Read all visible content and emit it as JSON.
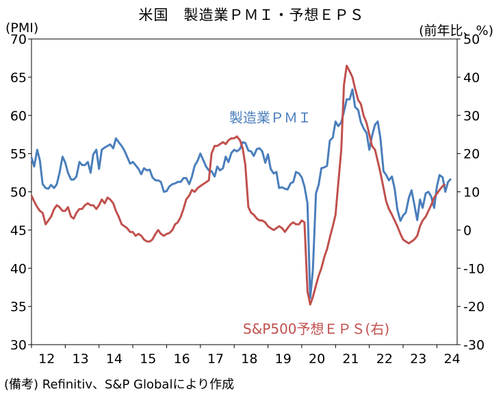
{
  "title": "米国　製造業ＰＭＩ・予想ＥＰＳ",
  "left_unit": "(PMI)",
  "right_unit": "(前年比、%)",
  "note": "(備考) Refinitiv、S&P Globalにより作成",
  "colors": {
    "pmi": "#4a7ebb",
    "eps": "#c0504d"
  },
  "chart_data": {
    "type": "line",
    "title": "米国　製造業ＰＭＩ・予想ＥＰＳ",
    "x_labels": [
      "12",
      "13",
      "14",
      "15",
      "16",
      "17",
      "18",
      "19",
      "20",
      "21",
      "22",
      "23",
      "24"
    ],
    "x_range": [
      2012.0,
      2024.6
    ],
    "y_left": {
      "label": "(PMI)",
      "lim": [
        30,
        70
      ],
      "ticks": [
        30,
        35,
        40,
        45,
        50,
        55,
        60,
        65,
        70
      ]
    },
    "y_right": {
      "label": "(前年比、%)",
      "lim": [
        -30,
        50
      ],
      "ticks": [
        -30,
        -20,
        -10,
        0,
        10,
        20,
        30,
        40,
        50
      ]
    },
    "grid": false,
    "series": [
      {
        "name": "製造業ＰＭＩ",
        "axis": "left",
        "color": "#4a7ebb",
        "label_text": "製造業ＰＭＩ",
        "points": [
          [
            2012.0,
            54.5
          ],
          [
            2012.08,
            53.3
          ],
          [
            2012.17,
            55.5
          ],
          [
            2012.25,
            54.1
          ],
          [
            2012.33,
            51.0
          ],
          [
            2012.42,
            50.5
          ],
          [
            2012.5,
            50.4
          ],
          [
            2012.58,
            50.9
          ],
          [
            2012.67,
            50.5
          ],
          [
            2012.75,
            51.0
          ],
          [
            2012.83,
            52.5
          ],
          [
            2012.92,
            54.6
          ],
          [
            2013.0,
            53.8
          ],
          [
            2013.08,
            52.5
          ],
          [
            2013.17,
            51.6
          ],
          [
            2013.25,
            51.6
          ],
          [
            2013.33,
            52.0
          ],
          [
            2013.42,
            53.9
          ],
          [
            2013.5,
            53.5
          ],
          [
            2013.58,
            53.5
          ],
          [
            2013.67,
            53.9
          ],
          [
            2013.75,
            52.5
          ],
          [
            2013.83,
            54.9
          ],
          [
            2013.92,
            55.5
          ],
          [
            2014.0,
            53.0
          ],
          [
            2014.08,
            55.5
          ],
          [
            2014.17,
            55.8
          ],
          [
            2014.25,
            56.0
          ],
          [
            2014.33,
            56.2
          ],
          [
            2014.42,
            55.7
          ],
          [
            2014.5,
            57.0
          ],
          [
            2014.58,
            56.5
          ],
          [
            2014.67,
            56.0
          ],
          [
            2014.75,
            55.4
          ],
          [
            2014.83,
            54.6
          ],
          [
            2014.92,
            53.7
          ],
          [
            2015.0,
            53.9
          ],
          [
            2015.08,
            53.5
          ],
          [
            2015.17,
            53.0
          ],
          [
            2015.25,
            52.3
          ],
          [
            2015.33,
            53.1
          ],
          [
            2015.42,
            52.8
          ],
          [
            2015.5,
            52.9
          ],
          [
            2015.58,
            51.9
          ],
          [
            2015.67,
            51.5
          ],
          [
            2015.75,
            51.5
          ],
          [
            2015.83,
            51.3
          ],
          [
            2015.92,
            50.0
          ],
          [
            2016.0,
            50.1
          ],
          [
            2016.08,
            50.7
          ],
          [
            2016.17,
            51.0
          ],
          [
            2016.25,
            51.1
          ],
          [
            2016.33,
            51.3
          ],
          [
            2016.42,
            51.3
          ],
          [
            2016.5,
            51.8
          ],
          [
            2016.58,
            51.8
          ],
          [
            2016.67,
            51.0
          ],
          [
            2016.75,
            52.0
          ],
          [
            2016.83,
            53.4
          ],
          [
            2016.92,
            54.1
          ],
          [
            2017.0,
            55.0
          ],
          [
            2017.08,
            54.2
          ],
          [
            2017.17,
            53.3
          ],
          [
            2017.25,
            52.8
          ],
          [
            2017.33,
            52.7
          ],
          [
            2017.42,
            52.0
          ],
          [
            2017.5,
            53.3
          ],
          [
            2017.58,
            52.8
          ],
          [
            2017.67,
            53.1
          ],
          [
            2017.75,
            54.6
          ],
          [
            2017.83,
            53.9
          ],
          [
            2017.92,
            55.1
          ],
          [
            2018.0,
            55.5
          ],
          [
            2018.08,
            55.3
          ],
          [
            2018.17,
            55.6
          ],
          [
            2018.25,
            56.5
          ],
          [
            2018.33,
            56.4
          ],
          [
            2018.42,
            55.4
          ],
          [
            2018.5,
            55.3
          ],
          [
            2018.58,
            54.7
          ],
          [
            2018.67,
            55.6
          ],
          [
            2018.75,
            55.7
          ],
          [
            2018.83,
            55.3
          ],
          [
            2018.92,
            53.8
          ],
          [
            2019.0,
            54.9
          ],
          [
            2019.08,
            53.0
          ],
          [
            2019.17,
            52.4
          ],
          [
            2019.25,
            52.6
          ],
          [
            2019.33,
            50.5
          ],
          [
            2019.42,
            50.6
          ],
          [
            2019.5,
            50.4
          ],
          [
            2019.58,
            50.3
          ],
          [
            2019.67,
            51.1
          ],
          [
            2019.75,
            51.3
          ],
          [
            2019.83,
            52.6
          ],
          [
            2019.92,
            52.4
          ],
          [
            2020.0,
            51.9
          ],
          [
            2020.08,
            50.7
          ],
          [
            2020.17,
            48.5
          ],
          [
            2020.25,
            36.1
          ],
          [
            2020.33,
            39.8
          ],
          [
            2020.42,
            49.8
          ],
          [
            2020.5,
            50.9
          ],
          [
            2020.58,
            53.1
          ],
          [
            2020.67,
            53.2
          ],
          [
            2020.75,
            53.4
          ],
          [
            2020.83,
            56.7
          ],
          [
            2020.92,
            57.1
          ],
          [
            2021.0,
            59.2
          ],
          [
            2021.08,
            58.6
          ],
          [
            2021.17,
            59.1
          ],
          [
            2021.25,
            60.5
          ],
          [
            2021.33,
            62.1
          ],
          [
            2021.42,
            62.1
          ],
          [
            2021.5,
            63.4
          ],
          [
            2021.58,
            61.1
          ],
          [
            2021.67,
            60.7
          ],
          [
            2021.75,
            59.1
          ],
          [
            2021.83,
            58.3
          ],
          [
            2021.92,
            57.7
          ],
          [
            2022.0,
            55.5
          ],
          [
            2022.08,
            57.3
          ],
          [
            2022.17,
            58.8
          ],
          [
            2022.25,
            59.2
          ],
          [
            2022.33,
            57.0
          ],
          [
            2022.42,
            52.7
          ],
          [
            2022.5,
            52.2
          ],
          [
            2022.58,
            51.5
          ],
          [
            2022.67,
            52.0
          ],
          [
            2022.75,
            50.4
          ],
          [
            2022.83,
            47.7
          ],
          [
            2022.92,
            46.2
          ],
          [
            2023.0,
            46.9
          ],
          [
            2023.08,
            47.3
          ],
          [
            2023.17,
            49.2
          ],
          [
            2023.25,
            50.2
          ],
          [
            2023.33,
            48.4
          ],
          [
            2023.42,
            46.3
          ],
          [
            2023.5,
            49.0
          ],
          [
            2023.58,
            47.9
          ],
          [
            2023.67,
            49.8
          ],
          [
            2023.75,
            50.0
          ],
          [
            2023.83,
            49.4
          ],
          [
            2023.92,
            47.9
          ],
          [
            2024.0,
            50.7
          ],
          [
            2024.08,
            52.2
          ],
          [
            2024.17,
            51.9
          ],
          [
            2024.25,
            50.0
          ],
          [
            2024.33,
            51.3
          ],
          [
            2024.42,
            51.7
          ]
        ]
      },
      {
        "name": "S&P500予想ＥＰＳ(右)",
        "axis": "right",
        "color": "#c0504d",
        "label_text": "S&P500予想ＥＰＳ(右)",
        "points": [
          [
            2012.0,
            9
          ],
          [
            2012.08,
            7.5
          ],
          [
            2012.17,
            6
          ],
          [
            2012.25,
            5
          ],
          [
            2012.33,
            4.5
          ],
          [
            2012.42,
            1.5
          ],
          [
            2012.5,
            2.5
          ],
          [
            2012.58,
            3.5
          ],
          [
            2012.67,
            5.5
          ],
          [
            2012.75,
            6.5
          ],
          [
            2012.83,
            6
          ],
          [
            2012.92,
            5
          ],
          [
            2013.0,
            5
          ],
          [
            2013.08,
            6
          ],
          [
            2013.17,
            3.5
          ],
          [
            2013.25,
            3.0
          ],
          [
            2013.33,
            4.5
          ],
          [
            2013.42,
            5.5
          ],
          [
            2013.5,
            5.5
          ],
          [
            2013.58,
            6.5
          ],
          [
            2013.67,
            7.0
          ],
          [
            2013.75,
            6.5
          ],
          [
            2013.83,
            6.5
          ],
          [
            2013.92,
            5.5
          ],
          [
            2014.0,
            6.5
          ],
          [
            2014.08,
            8.0
          ],
          [
            2014.17,
            7.0
          ],
          [
            2014.25,
            8.5
          ],
          [
            2014.33,
            8.0
          ],
          [
            2014.42,
            7.0
          ],
          [
            2014.5,
            5.0
          ],
          [
            2014.58,
            3.5
          ],
          [
            2014.67,
            1.5
          ],
          [
            2014.75,
            1.0
          ],
          [
            2014.83,
            0.5
          ],
          [
            2014.92,
            -0.5
          ],
          [
            2015.0,
            -0.5
          ],
          [
            2015.08,
            -1.5
          ],
          [
            2015.17,
            -1.0
          ],
          [
            2015.25,
            -1.5
          ],
          [
            2015.33,
            -2.5
          ],
          [
            2015.42,
            -3
          ],
          [
            2015.5,
            -3.0
          ],
          [
            2015.58,
            -2.5
          ],
          [
            2015.67,
            -1.0
          ],
          [
            2015.75,
            0
          ],
          [
            2015.83,
            -1.0
          ],
          [
            2015.92,
            -1.5
          ],
          [
            2016.0,
            -1.0
          ],
          [
            2016.08,
            -0.8
          ],
          [
            2016.17,
            0.0
          ],
          [
            2016.25,
            1.5
          ],
          [
            2016.33,
            2.0
          ],
          [
            2016.42,
            3.5
          ],
          [
            2016.5,
            5.5
          ],
          [
            2016.58,
            8.0
          ],
          [
            2016.67,
            9.0
          ],
          [
            2016.75,
            10.5
          ],
          [
            2016.83,
            10.0
          ],
          [
            2016.92,
            11.0
          ],
          [
            2017.0,
            11.5
          ],
          [
            2017.08,
            12.0
          ],
          [
            2017.17,
            12.5
          ],
          [
            2017.25,
            13.0
          ],
          [
            2017.33,
            20.0
          ],
          [
            2017.42,
            22.0
          ],
          [
            2017.5,
            22.0
          ],
          [
            2017.58,
            22.5
          ],
          [
            2017.67,
            23.0
          ],
          [
            2017.75,
            22.5
          ],
          [
            2017.83,
            23.5
          ],
          [
            2017.92,
            24.0
          ],
          [
            2018.0,
            24.0
          ],
          [
            2018.08,
            24.5
          ],
          [
            2018.17,
            23.5
          ],
          [
            2018.25,
            21.5
          ],
          [
            2018.33,
            17.0
          ],
          [
            2018.42,
            6.0
          ],
          [
            2018.5,
            4.5
          ],
          [
            2018.58,
            4.0
          ],
          [
            2018.67,
            3.0
          ],
          [
            2018.75,
            2.5
          ],
          [
            2018.83,
            2.5
          ],
          [
            2018.92,
            2.0
          ],
          [
            2019.0,
            1.0
          ],
          [
            2019.08,
            0.5
          ],
          [
            2019.17,
            0.0
          ],
          [
            2019.25,
            0.5
          ],
          [
            2019.33,
            1.0
          ],
          [
            2019.42,
            0.5
          ],
          [
            2019.5,
            -0.5
          ],
          [
            2019.58,
            0.5
          ],
          [
            2019.67,
            1.5
          ],
          [
            2019.75,
            2.0
          ],
          [
            2019.83,
            1.5
          ],
          [
            2019.92,
            1.5
          ],
          [
            2020.0,
            2.5
          ],
          [
            2020.08,
            2.0
          ],
          [
            2020.17,
            -16.0
          ],
          [
            2020.25,
            -19.5
          ],
          [
            2020.33,
            -17.5
          ],
          [
            2020.42,
            -14.5
          ],
          [
            2020.5,
            -12.0
          ],
          [
            2020.58,
            -10.0
          ],
          [
            2020.67,
            -7.0
          ],
          [
            2020.75,
            -5.0
          ],
          [
            2020.83,
            -2.0
          ],
          [
            2020.92,
            1.0
          ],
          [
            2021.0,
            4.0
          ],
          [
            2021.08,
            12.0
          ],
          [
            2021.17,
            21.0
          ],
          [
            2021.25,
            38.0
          ],
          [
            2021.33,
            43.0
          ],
          [
            2021.42,
            41.5
          ],
          [
            2021.5,
            40.0
          ],
          [
            2021.58,
            37.0
          ],
          [
            2021.67,
            34.0
          ],
          [
            2021.75,
            33.0
          ],
          [
            2021.83,
            30.0
          ],
          [
            2021.92,
            28.0
          ],
          [
            2022.0,
            25.0
          ],
          [
            2022.08,
            22.0
          ],
          [
            2022.17,
            21.0
          ],
          [
            2022.25,
            18.0
          ],
          [
            2022.33,
            15.0
          ],
          [
            2022.42,
            11.0
          ],
          [
            2022.5,
            7.5
          ],
          [
            2022.58,
            5.5
          ],
          [
            2022.67,
            4.0
          ],
          [
            2022.75,
            2.5
          ],
          [
            2022.83,
            1.0
          ],
          [
            2022.92,
            -1.0
          ],
          [
            2023.0,
            -2.5
          ],
          [
            2023.08,
            -3.0
          ],
          [
            2023.17,
            -3.5
          ],
          [
            2023.25,
            -3.0
          ],
          [
            2023.33,
            -2.5
          ],
          [
            2023.42,
            -1.5
          ],
          [
            2023.5,
            1.0
          ],
          [
            2023.58,
            2.5
          ],
          [
            2023.67,
            3.5
          ],
          [
            2023.75,
            5.0
          ],
          [
            2023.83,
            6.5
          ],
          [
            2023.92,
            8.5
          ],
          [
            2024.0,
            9.5
          ],
          [
            2024.08,
            10.5
          ],
          [
            2024.17,
            11.5
          ],
          [
            2024.25,
            12.0
          ]
        ]
      }
    ]
  }
}
